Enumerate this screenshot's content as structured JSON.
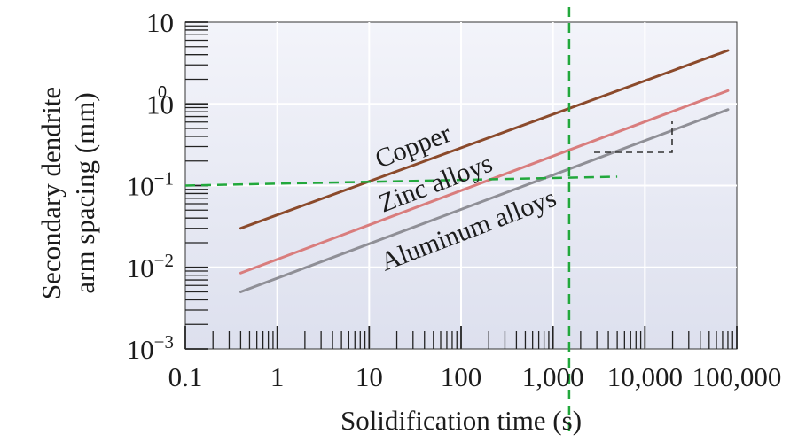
{
  "chart_data": {
    "type": "line",
    "x_scale": "log",
    "y_scale": "log",
    "xlim": [
      0.1,
      100000
    ],
    "ylim": [
      0.001,
      10
    ],
    "grid": true,
    "xlabel": "Solidification time (s)",
    "ylabel_lines": [
      "Secondary dendrite",
      "arm spacing (mm)"
    ],
    "x_ticks": [
      {
        "value": 0.1,
        "label": "0.1"
      },
      {
        "value": 1,
        "label": "1"
      },
      {
        "value": 10,
        "label": "10"
      },
      {
        "value": 100,
        "label": "100"
      },
      {
        "value": 1000,
        "label": "1,000"
      },
      {
        "value": 10000,
        "label": "10,000"
      },
      {
        "value": 100000,
        "label": "100,000"
      }
    ],
    "y_ticks": [
      {
        "value": 10,
        "base": "10",
        "exp": ""
      },
      {
        "value": 1,
        "base": "10",
        "exp": ""
      },
      {
        "value": 0.1,
        "base": "10",
        "exp": "−1"
      },
      {
        "value": 0.01,
        "base": "10",
        "exp": "−2"
      },
      {
        "value": 0.001,
        "base": "10",
        "exp": "−3"
      }
    ],
    "stray_label": "0",
    "series": [
      {
        "name": "Copper",
        "color": "#8b4a2b",
        "x": [
          0.4,
          80000
        ],
        "y": [
          0.03,
          4.5
        ]
      },
      {
        "name": "Zinc alloys",
        "color": "#d97d7d",
        "x": [
          0.4,
          80000
        ],
        "y": [
          0.0085,
          1.45
        ]
      },
      {
        "name": "Aluminum alloys",
        "color": "#8f8f96",
        "x": [
          0.4,
          80000
        ],
        "y": [
          0.005,
          0.85
        ]
      }
    ],
    "guide_lines": {
      "color": "#22a83c",
      "vertical_x": 1500,
      "horizontal_y": 0.1,
      "horizontal_x_end": 5000
    },
    "slope_triangle_color": "#333333",
    "plot_background": "#eef0f8"
  }
}
